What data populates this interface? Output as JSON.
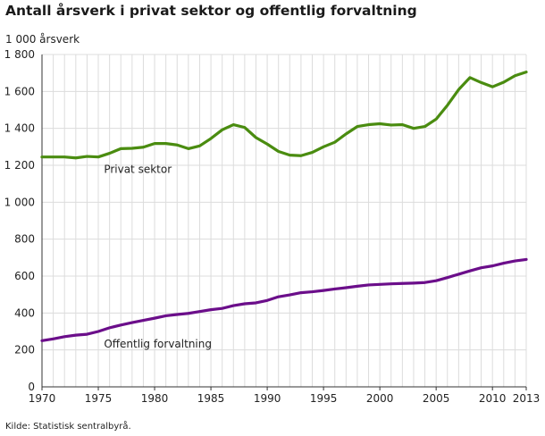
{
  "chart_data": {
    "type": "line",
    "title": "Antall årsverk i privat sektor og offentlig forvaltning",
    "ylabel": "1 000 årsverk",
    "xlabel": "",
    "source": "Kilde: Statistisk sentralbyrå.",
    "xlim": [
      1970,
      2013
    ],
    "ylim": [
      0,
      1800
    ],
    "grid": true,
    "x_ticks": [
      1970,
      1975,
      1980,
      1985,
      1990,
      1995,
      2000,
      2005,
      2010,
      2013
    ],
    "y_ticks": [
      0,
      200,
      400,
      600,
      800,
      1000,
      1200,
      1400,
      1600,
      1800
    ],
    "x_tick_labels": [
      "1970",
      "1975",
      "1980",
      "1985",
      "1990",
      "1995",
      "2000",
      "2005",
      "2010",
      "2013"
    ],
    "y_tick_labels": [
      "0",
      "200",
      "400",
      "600",
      "800",
      "1 000",
      "1 200",
      "1 400",
      "1 600",
      "1 800"
    ],
    "x": [
      1970,
      1971,
      1972,
      1973,
      1974,
      1975,
      1976,
      1977,
      1978,
      1979,
      1980,
      1981,
      1982,
      1983,
      1984,
      1985,
      1986,
      1987,
      1988,
      1989,
      1990,
      1991,
      1992,
      1993,
      1994,
      1995,
      1996,
      1997,
      1998,
      1999,
      2000,
      2001,
      2002,
      2003,
      2004,
      2005,
      2006,
      2007,
      2008,
      2009,
      2010,
      2011,
      2012,
      2013
    ],
    "series": [
      {
        "name": "Privat sektor",
        "color": "#4a8c10",
        "values": [
          1245,
          1245,
          1245,
          1240,
          1248,
          1245,
          1265,
          1290,
          1292,
          1298,
          1318,
          1318,
          1310,
          1290,
          1305,
          1345,
          1392,
          1420,
          1405,
          1350,
          1315,
          1275,
          1255,
          1252,
          1270,
          1300,
          1325,
          1370,
          1410,
          1420,
          1425,
          1418,
          1420,
          1400,
          1410,
          1450,
          1525,
          1610,
          1675,
          1648,
          1625,
          1650,
          1685,
          1705
        ]
      },
      {
        "name": "Offentlig forvaltning",
        "color": "#6b0e8a",
        "values": [
          250,
          260,
          272,
          280,
          285,
          300,
          320,
          335,
          348,
          360,
          372,
          385,
          392,
          398,
          408,
          418,
          425,
          440,
          450,
          455,
          468,
          488,
          498,
          510,
          515,
          522,
          530,
          537,
          545,
          552,
          555,
          558,
          560,
          562,
          565,
          575,
          592,
          610,
          628,
          645,
          655,
          670,
          682,
          690
        ]
      }
    ]
  }
}
